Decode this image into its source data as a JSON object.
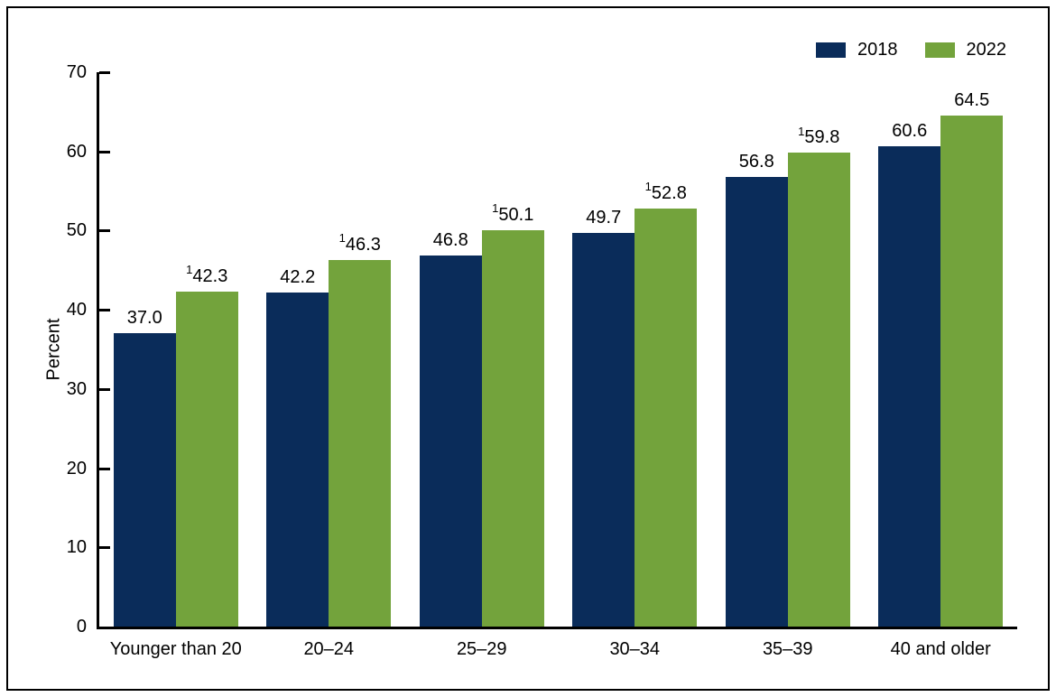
{
  "colors": {
    "series_2018": "#0a2c5a",
    "series_2022": "#73a33c",
    "axis": "#000000",
    "text": "#000000",
    "background": "#ffffff"
  },
  "legend": {
    "items": [
      {
        "label": "2018",
        "color": "#0a2c5a"
      },
      {
        "label": "2022",
        "color": "#73a33c"
      }
    ]
  },
  "chart_data": {
    "type": "bar",
    "title": "",
    "ylabel": "Percent",
    "xlabel": "",
    "ylim": [
      0,
      70
    ],
    "yticks": [
      0,
      10,
      20,
      30,
      40,
      50,
      60,
      70
    ],
    "grid": false,
    "legend_position": "top-right",
    "flag_symbol": "1",
    "categories": [
      "Younger than 20",
      "20–24",
      "25–29",
      "30–34",
      "35–39",
      "40 and older"
    ],
    "series": [
      {
        "name": "2018",
        "color": "#0a2c5a",
        "values": [
          37.0,
          42.2,
          46.8,
          49.7,
          56.8,
          60.6
        ],
        "value_labels": [
          "37.0",
          "42.2",
          "46.8",
          "49.7",
          "56.8",
          "60.6"
        ],
        "flagged": [
          false,
          false,
          false,
          false,
          false,
          false
        ]
      },
      {
        "name": "2022",
        "color": "#73a33c",
        "values": [
          42.3,
          46.3,
          50.1,
          52.8,
          59.8,
          64.5
        ],
        "value_labels": [
          "42.3",
          "46.3",
          "50.1",
          "52.8",
          "59.8",
          "64.5"
        ],
        "flagged": [
          true,
          true,
          true,
          true,
          true,
          false
        ]
      }
    ]
  }
}
